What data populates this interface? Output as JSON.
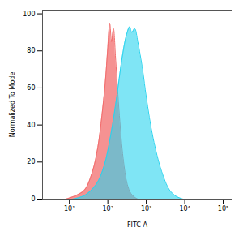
{
  "chart_data": {
    "type": "area",
    "x_label": "FITC-A",
    "y_label": "Normalized To Mode",
    "log": "x",
    "xlim": [
      2,
      170000
    ],
    "ylim": [
      0,
      102
    ],
    "xticks": [
      {
        "value": 10,
        "label": "10¹"
      },
      {
        "value": 100,
        "label": "10²"
      },
      {
        "value": 1000,
        "label": "10³"
      },
      {
        "value": 10000,
        "label": "10⁴"
      },
      {
        "value": 100000,
        "label": "10⁵"
      }
    ],
    "yticks": [
      0,
      20,
      40,
      60,
      80,
      100
    ],
    "series": [
      {
        "color": "#f26d6d",
        "x": [
          8,
          15,
          25,
          40,
          55,
          70,
          85,
          100,
          112,
          125,
          140,
          160,
          200,
          250,
          320,
          400,
          500,
          600
        ],
        "values": [
          0,
          2,
          5,
          15,
          28,
          45,
          62,
          82,
          95,
          85,
          92,
          75,
          45,
          22,
          8,
          3,
          1,
          0
        ]
      },
      {
        "color": "#29d3ee",
        "x": [
          12,
          25,
          50,
          80,
          120,
          170,
          230,
          300,
          370,
          420,
          500,
          600,
          800,
          1000,
          1500,
          2500,
          4000,
          6000,
          9000
        ],
        "values": [
          0,
          2,
          8,
          18,
          35,
          55,
          75,
          88,
          93,
          90,
          92,
          85,
          70,
          55,
          33,
          15,
          5,
          1.5,
          0
        ]
      }
    ]
  }
}
